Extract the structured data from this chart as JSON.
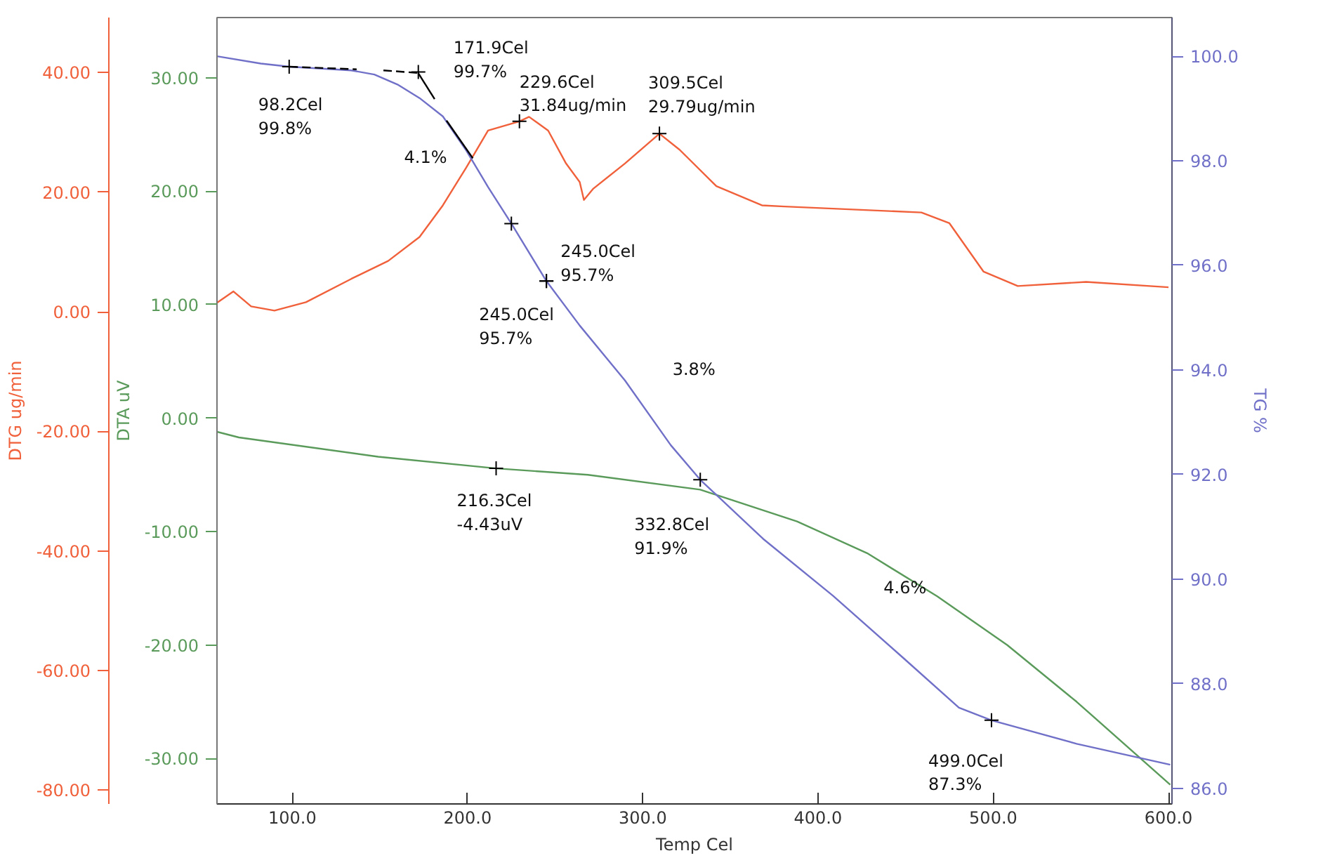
{
  "chart_data": {
    "type": "line",
    "xlabel": "Temp Cel",
    "ylabel": "DTA uV",
    "y2label": "DTG ug/min",
    "y3label": "TG %",
    "xlim": [
      57,
      602
    ],
    "xticks": [
      {
        "value": 100,
        "label": "100.0"
      },
      {
        "value": 200,
        "label": "200.0"
      },
      {
        "value": 300,
        "label": "300.0"
      },
      {
        "value": 400,
        "label": "400.0"
      },
      {
        "value": 500,
        "label": "500.0"
      },
      {
        "value": 600,
        "label": "600.0"
      }
    ],
    "ylim": [
      -34.0,
      35.3
    ],
    "yticks": [
      {
        "value": -30,
        "label": "-30.00"
      },
      {
        "value": -20,
        "label": "-20.00"
      },
      {
        "value": -10,
        "label": "-10.00"
      },
      {
        "value": 0,
        "label": "0.00"
      },
      {
        "value": 10,
        "label": "10.00"
      },
      {
        "value": 20,
        "label": "20.00"
      },
      {
        "value": 30,
        "label": "30.00"
      }
    ],
    "y2lim": [
      -82.3,
      49.2
    ],
    "y2ticks": [
      {
        "value": -80,
        "label": "-80.00"
      },
      {
        "value": -60,
        "label": "-60.00"
      },
      {
        "value": -40,
        "label": "-40.00"
      },
      {
        "value": -20,
        "label": "-20.00"
      },
      {
        "value": 0,
        "label": "0.00"
      },
      {
        "value": 20,
        "label": "20.00"
      },
      {
        "value": 40,
        "label": "40.00"
      }
    ],
    "y3lim": [
      85.7,
      100.74
    ],
    "y3ticks": [
      {
        "value": 86,
        "label": "86.0"
      },
      {
        "value": 88,
        "label": "88.0"
      },
      {
        "value": 90,
        "label": "90.0"
      },
      {
        "value": 92,
        "label": "92.0"
      },
      {
        "value": 94,
        "label": "94.0"
      },
      {
        "value": 96,
        "label": "96.0"
      },
      {
        "value": 98,
        "label": "98.0"
      },
      {
        "value": 100,
        "label": "100.0"
      }
    ],
    "grid": false,
    "line_style": "solid",
    "series": [
      {
        "axis": "y2",
        "color": "#f0603a",
        "x": [
          57,
          66.4,
          76.5,
          89.8,
          107.8,
          133.6,
          154.7,
          172.6,
          185.9,
          199.2,
          211.7,
          229.6,
          235.1,
          246,
          256.2,
          264,
          266.4,
          271.8,
          289.8,
          309.5,
          321,
          342,
          368,
          381,
          420,
          459,
          475,
          494.5,
          514,
          553,
          600
        ],
        "values": [
          1.5,
          3.4,
          0.9,
          0.2,
          1.6,
          5.5,
          8.5,
          12.5,
          17.8,
          24.1,
          30.3,
          31.84,
          32.6,
          30.3,
          24.8,
          21.7,
          18.7,
          20.6,
          24.8,
          29.79,
          27.1,
          21,
          17.8,
          17.6,
          17.1,
          16.6,
          14.8,
          6.7,
          4.3,
          5.0,
          4.1
        ]
      },
      {
        "axis": "y",
        "color": "#5a9a5a",
        "x": [
          57,
          69.5,
          149,
          216.3,
          268.7,
          332.8,
          388,
          428,
          468,
          508,
          547.6,
          601
        ],
        "values": [
          -1.2,
          -1.7,
          -3.4,
          -4.43,
          -5.0,
          -6.3,
          -9.1,
          -11.9,
          -15.7,
          -20,
          -25,
          -32.3
        ]
      },
      {
        "axis": "y3",
        "color": "#7070c8",
        "x": [
          57,
          82,
          98.4,
          133.6,
          146.8,
          160,
          172.6,
          185.9,
          199.2,
          211.7,
          225,
          245,
          264,
          289.8,
          316,
          332.8,
          368.7,
          408.6,
          448.4,
          480.4,
          499,
          547.6,
          601
        ],
        "values": [
          100.0,
          99.86,
          99.8,
          99.73,
          99.65,
          99.46,
          99.2,
          98.85,
          98.2,
          97.5,
          96.8,
          95.7,
          94.85,
          93.8,
          92.56,
          91.9,
          90.77,
          89.68,
          88.5,
          87.54,
          87.3,
          86.85,
          86.45
        ]
      },
      {
        "type": "line",
        "axis": "y3",
        "color": "#000000",
        "line_style": "dashed",
        "x": [
          98.4,
          136.7
        ],
        "values": [
          99.8,
          99.75
        ]
      },
      {
        "type": "line",
        "axis": "y3",
        "color": "#000000",
        "line_style": "dashed",
        "x": [
          152,
          171.8
        ],
        "values": [
          99.73,
          99.68
        ]
      },
      {
        "type": "line",
        "axis": "y3",
        "color": "#000000",
        "x": [
          171.8,
          181.2
        ],
        "values": [
          99.68,
          99.18
        ]
      },
      {
        "type": "line",
        "axis": "y3",
        "color": "#000000",
        "x": [
          188,
          203
        ],
        "values": [
          98.77,
          98.05
        ]
      },
      {
        "type": "scatter",
        "axis": "y3",
        "color": "#000000",
        "marker": "cross",
        "x": [
          98.2,
          171.9,
          225,
          245,
          245,
          332.8,
          499.0
        ],
        "values": [
          99.8,
          99.7,
          96.8,
          95.7,
          95.7,
          91.9,
          87.3
        ],
        "value_labels": [
          "98.2Cel\n99.8%",
          "171.9Cel\n99.7%",
          null,
          "245.0Cel\n95.7%",
          "245.0Cel\n95.7%",
          "332.8Cel\n91.9%",
          "499.0Cel\n87.3%"
        ]
      },
      {
        "type": "scatter",
        "axis": "y2",
        "color": "#000000",
        "marker": "cross",
        "x": [
          229.6,
          309.5
        ],
        "values": [
          31.84,
          29.79
        ],
        "value_labels": [
          "229.6Cel\n31.84ug/min",
          "309.5Cel\n29.79ug/min"
        ]
      },
      {
        "type": "scatter",
        "axis": "y",
        "color": "#000000",
        "marker": "cross",
        "x": [
          216.3
        ],
        "values": [
          -4.43
        ],
        "value_labels": [
          "216.3Cel\n-4.43uV"
        ]
      }
    ],
    "annotations": [
      "4.1%",
      "3.8%",
      "4.6%"
    ]
  }
}
